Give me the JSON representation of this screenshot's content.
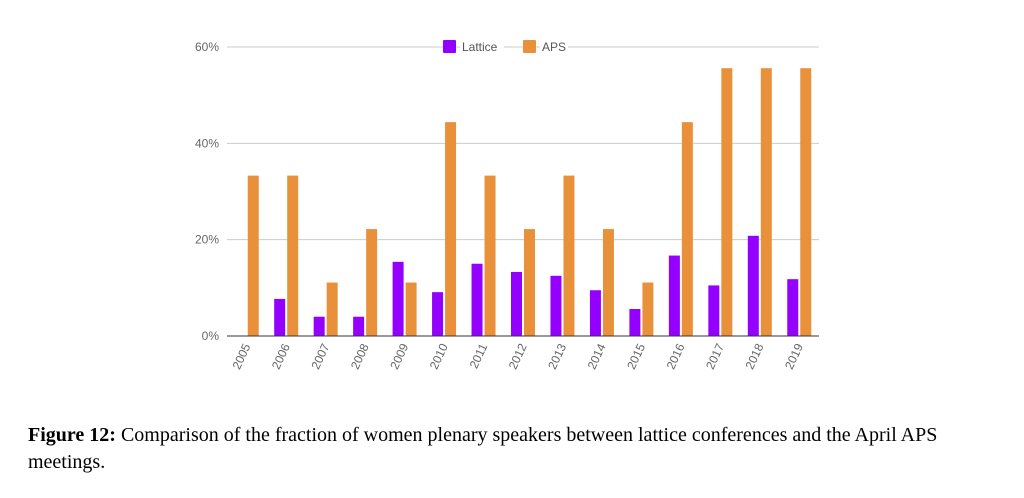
{
  "colors": {
    "lattice": "#9400ff",
    "aps": "#e8913a",
    "grid": "#cccccc",
    "axis": "#333333"
  },
  "caption": {
    "label": "Figure 12:",
    "text": "Comparison of the fraction of women plenary speakers between lattice conferences and the April APS meetings."
  },
  "chart_data": {
    "type": "bar",
    "title": "",
    "xlabel": "",
    "ylabel": "",
    "ylim": [
      0,
      60
    ],
    "yticks": [
      "0%",
      "20%",
      "40%",
      "60%"
    ],
    "grid": true,
    "legend_position": "top-center",
    "categories": [
      "2005",
      "2006",
      "2007",
      "2008",
      "2009",
      "2010",
      "2011",
      "2012",
      "2013",
      "2014",
      "2015",
      "2016",
      "2017",
      "2018",
      "2019"
    ],
    "series": [
      {
        "name": "Lattice",
        "values": [
          0,
          7.7,
          4,
          4,
          15.4,
          9.1,
          15,
          13.3,
          12.5,
          9.5,
          5.6,
          16.7,
          10.5,
          20.8,
          11.8
        ]
      },
      {
        "name": "APS",
        "values": [
          33.3,
          33.3,
          11.1,
          22.2,
          11.1,
          44.4,
          33.3,
          22.2,
          33.3,
          22.2,
          11.1,
          44.4,
          55.6,
          55.6,
          55.6
        ]
      }
    ]
  }
}
